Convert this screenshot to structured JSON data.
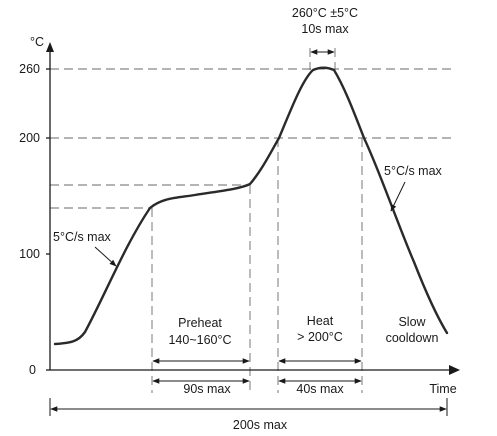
{
  "chart_data": {
    "type": "line",
    "title": "",
    "y_unit": "°C",
    "x_label": "Time",
    "y_ticks": [
      "0",
      "100",
      "200",
      "260"
    ],
    "series": [
      {
        "x": [
          0,
          10,
          20,
          35,
          45,
          55,
          100,
          110,
          120,
          125,
          130,
          135,
          140,
          145,
          155,
          170,
          185,
          200
        ],
        "y": [
          25,
          28,
          45,
          110,
          145,
          150,
          160,
          175,
          200,
          225,
          258,
          260,
          260,
          245,
          200,
          140,
          80,
          30
        ]
      }
    ]
  },
  "annotations": {
    "peak_temp": "260°C ±5°C",
    "peak_time": "10s max",
    "ramp_up": "5°C/s max",
    "ramp_down": "5°C/s max",
    "preheat_title": "Preheat",
    "preheat_range": "140~160°C",
    "heat_title": "Heat",
    "heat_range": "> 200°C",
    "cooldown_title": "Slow",
    "cooldown_sub": "cooldown"
  },
  "durations": {
    "preheat": "90s max",
    "heat": "40s max",
    "total": "200s max"
  }
}
